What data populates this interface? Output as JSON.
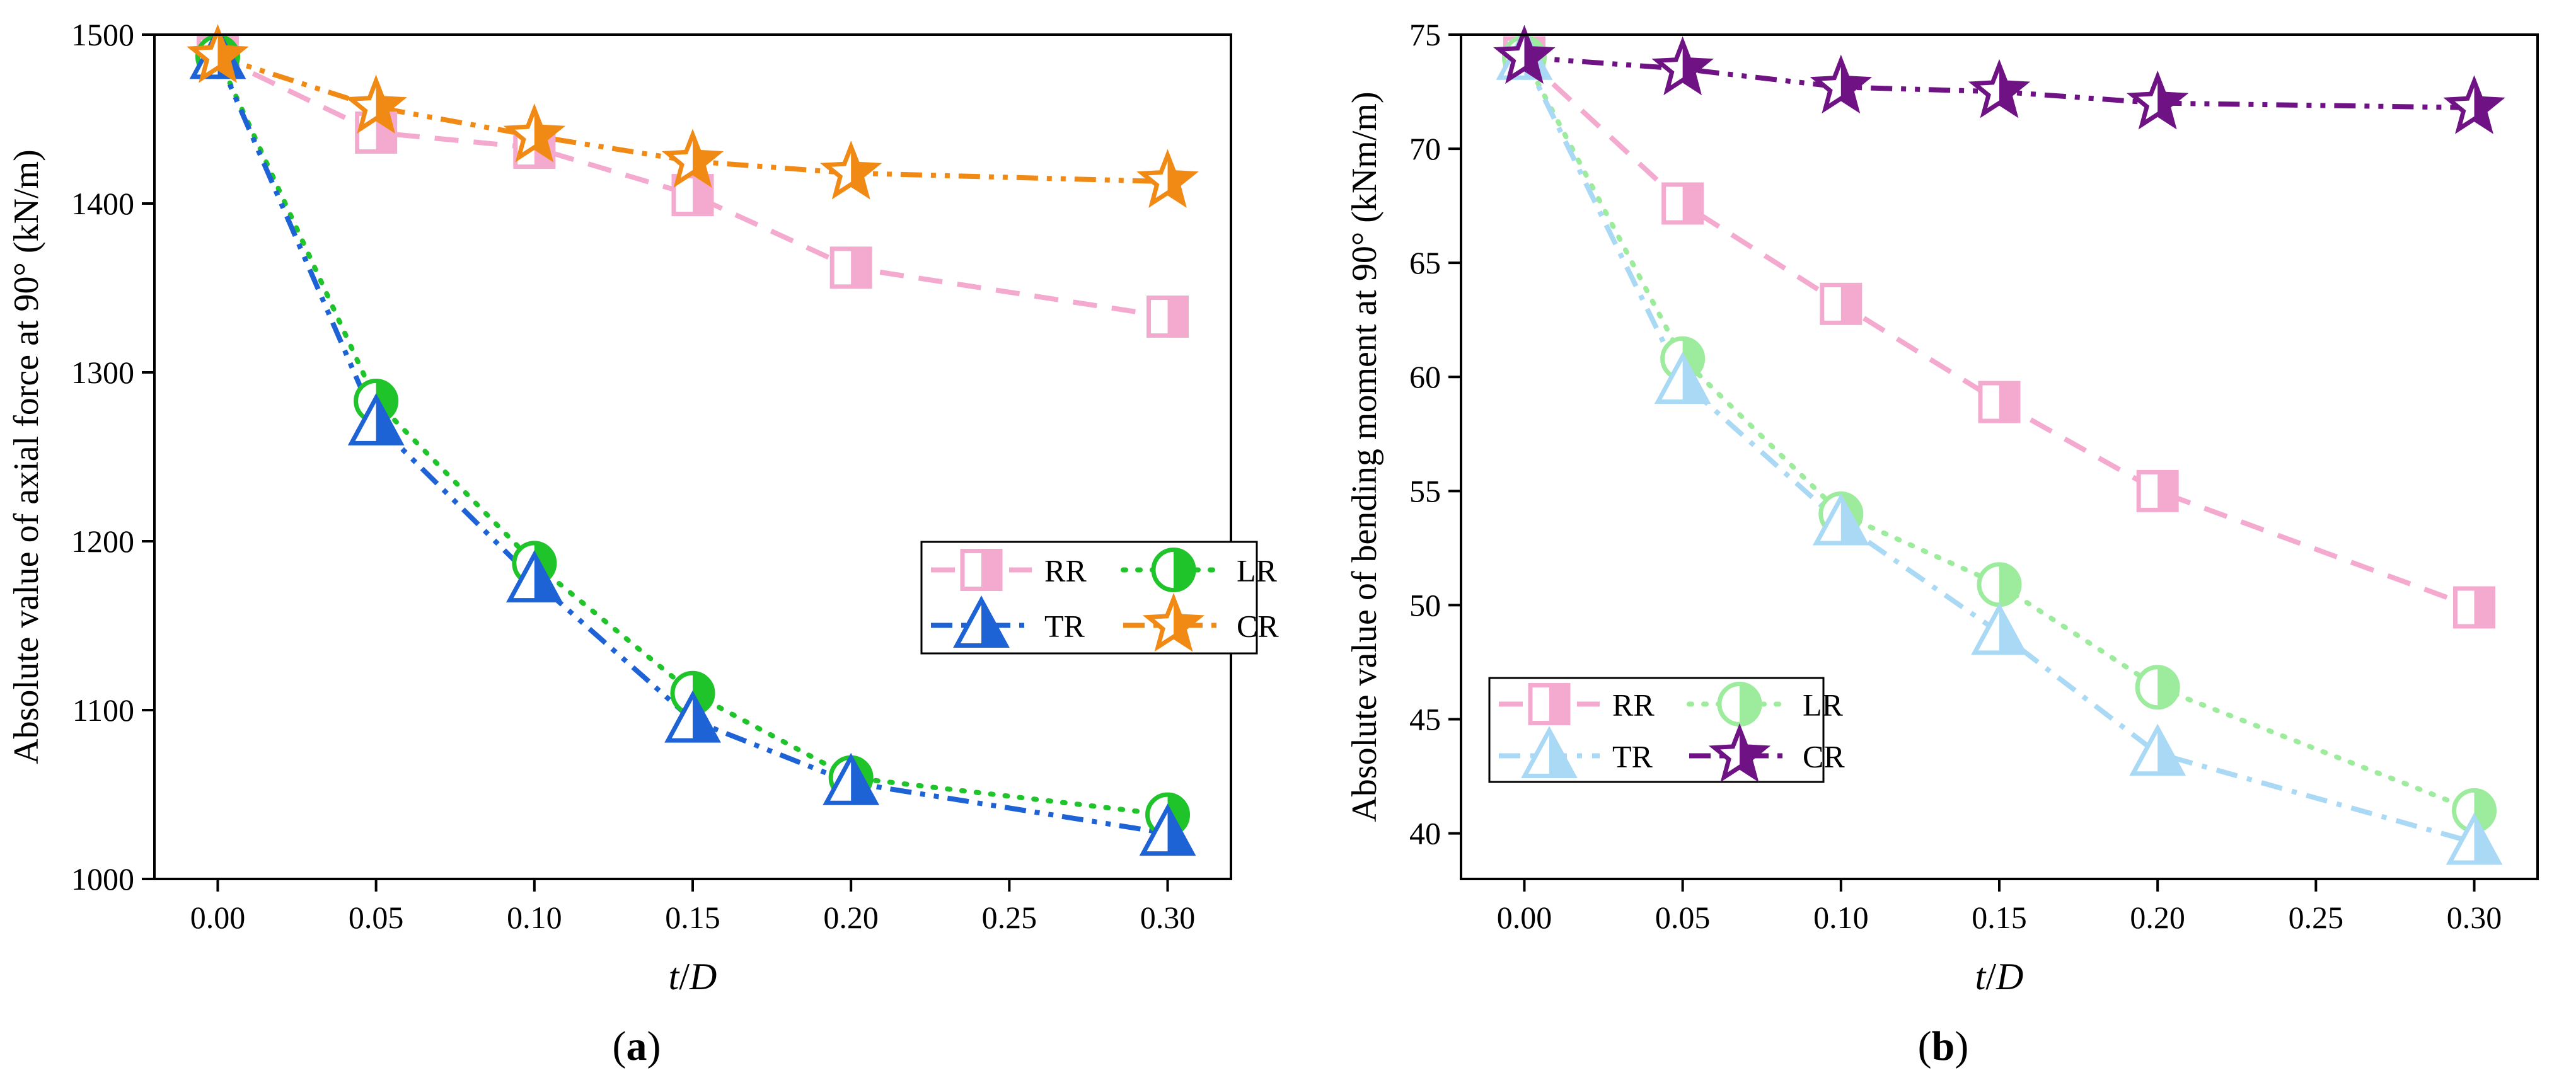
{
  "colors": {
    "RR": "#F4A9CF",
    "LR_a": "#1FC32A",
    "TR_a": "#1E63D6",
    "CR_a": "#F08A14",
    "LR_b": "#9DEB9C",
    "TR_b": "#A9D9F4",
    "CR_b": "#6E1284",
    "axis": "#000000"
  },
  "chart_data": [
    {
      "id": "a",
      "type": "line",
      "caption": "(a)",
      "caption_letter": "a",
      "xlabel": "t/D",
      "xlabel_parts": [
        "t",
        "/",
        "D"
      ],
      "ylabel": "Absolute value of axial force at 90° (kN/m)",
      "xlim": [
        -0.02,
        0.32
      ],
      "ylim": [
        1000,
        1500
      ],
      "xticks": [
        0.0,
        0.05,
        0.1,
        0.15,
        0.2,
        0.25,
        0.3
      ],
      "xtick_labels": [
        "0.00",
        "0.05",
        "0.10",
        "0.15",
        "0.20",
        "0.25",
        "0.30"
      ],
      "yticks": [
        1000,
        1100,
        1200,
        1300,
        1400,
        1500
      ],
      "ytick_labels": [
        "1000",
        "1100",
        "1200",
        "1300",
        "1400",
        "1500"
      ],
      "x": [
        0.0,
        0.05,
        0.1,
        0.15,
        0.2,
        0.3
      ],
      "series": [
        {
          "name": "RR",
          "marker": "square",
          "dash": "dash",
          "values": [
            1487,
            1442,
            1433,
            1405,
            1362,
            1333
          ]
        },
        {
          "name": "LR",
          "marker": "circle",
          "dash": "dot",
          "values": [
            1487,
            1283,
            1187,
            1110,
            1060,
            1038
          ]
        },
        {
          "name": "TR",
          "marker": "triangle",
          "dash": "dashdotdot",
          "values": [
            1487,
            1270,
            1177,
            1094,
            1057,
            1027
          ]
        },
        {
          "name": "CR",
          "marker": "star",
          "dash": "dashdotdot",
          "values": [
            1487,
            1457,
            1440,
            1425,
            1418,
            1413
          ]
        }
      ],
      "legend_layout": [
        [
          "RR",
          "LR"
        ],
        [
          "TR",
          "CR"
        ]
      ],
      "legend_position": "center-right",
      "grid": false
    },
    {
      "id": "b",
      "type": "line",
      "caption": "(b)",
      "caption_letter": "b",
      "xlabel": "t/D",
      "xlabel_parts": [
        "t",
        "/",
        "D"
      ],
      "ylabel": "Absolute value of bending moment at 90°  (kNm/m)",
      "xlim": [
        -0.02,
        0.32
      ],
      "ylim": [
        38,
        75
      ],
      "xticks": [
        0.0,
        0.05,
        0.1,
        0.15,
        0.2,
        0.25,
        0.3
      ],
      "xtick_labels": [
        "0.00",
        "0.05",
        "0.10",
        "0.15",
        "0.20",
        "0.25",
        "0.30"
      ],
      "yticks": [
        40,
        45,
        50,
        55,
        60,
        65,
        70,
        75
      ],
      "ytick_labels": [
        "40",
        "45",
        "50",
        "55",
        "60",
        "65",
        "70",
        "75"
      ],
      "x": [
        0.0,
        0.05,
        0.1,
        0.15,
        0.2,
        0.3
      ],
      "series": [
        {
          "name": "RR",
          "marker": "square",
          "dash": "dash",
          "values": [
            74,
            67.6,
            63.2,
            58.9,
            55.0,
            49.9
          ]
        },
        {
          "name": "LR",
          "marker": "circle",
          "dash": "dot",
          "values": [
            74,
            60.8,
            54.0,
            50.9,
            46.4,
            41.0
          ]
        },
        {
          "name": "TR",
          "marker": "triangle",
          "dash": "dashdot",
          "values": [
            74,
            59.8,
            53.6,
            48.8,
            43.5,
            39.6
          ]
        },
        {
          "name": "CR",
          "marker": "star",
          "dash": "dashdotdot",
          "values": [
            74,
            73.5,
            72.7,
            72.5,
            72.0,
            71.8
          ]
        }
      ],
      "legend_layout": [
        [
          "RR",
          "LR"
        ],
        [
          "TR",
          "CR"
        ]
      ],
      "legend_position": "bottom-left",
      "grid": false
    }
  ]
}
